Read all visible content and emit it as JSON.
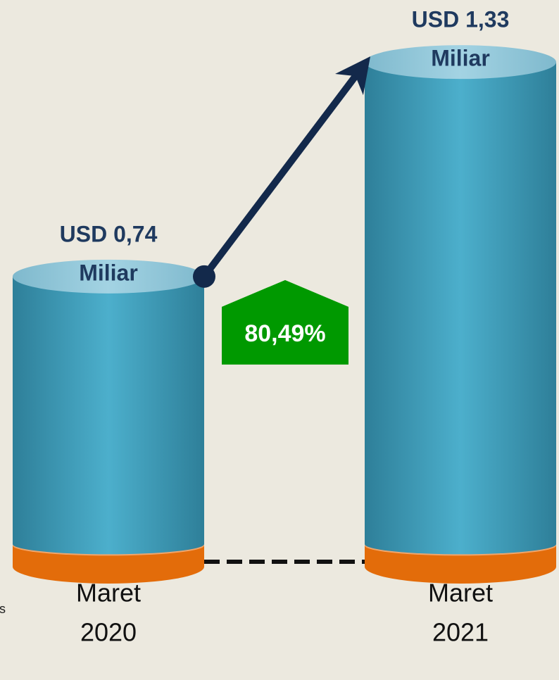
{
  "chart_data": {
    "type": "cylinder",
    "categories": [
      [
        "Maret",
        "2020"
      ],
      [
        "Maret",
        "2021"
      ]
    ],
    "values": [
      0.74,
      1.33
    ],
    "value_labels": [
      [
        "USD 0,74",
        "Miliar"
      ],
      [
        "USD 1,33",
        "Miliar"
      ]
    ],
    "color": "#3a9bb8",
    "base_color": "#e36c0a",
    "ylim": [
      0,
      1.4
    ],
    "growth_label": "80,49%",
    "growth_color": "#009900",
    "side_note": "us"
  }
}
